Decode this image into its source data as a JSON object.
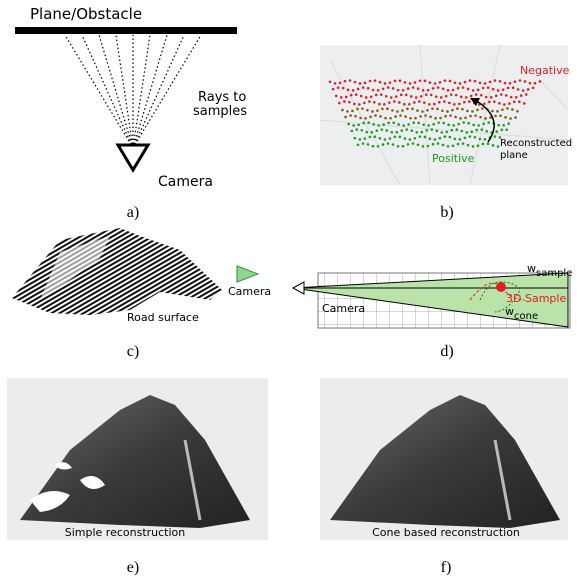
{
  "panel_a": {
    "plane_label": "Plane/Obstacle",
    "rays_label": [
      "Rays to",
      "samples"
    ],
    "camera_label": "Camera",
    "caption": "a)"
  },
  "panel_b": {
    "negative_label": "Negative",
    "positive_label": "Positive",
    "plane_label": [
      "Reconstructed",
      "plane"
    ],
    "caption": "b)"
  },
  "panel_c": {
    "camera_label": "Camera",
    "surface_label": "Road surface",
    "caption": "c)"
  },
  "panel_d": {
    "camera_label": "Camera",
    "w_sample": {
      "symbol": "w",
      "subscript": "sample"
    },
    "sample_label": "3D Sample",
    "w_cone": {
      "symbol": "w",
      "subscript": "cone"
    },
    "caption": "d)"
  },
  "panel_e": {
    "label": "Simple reconstruction",
    "caption": "e)"
  },
  "panel_f": {
    "label": "Cone based reconstruction",
    "caption": "f)"
  }
}
